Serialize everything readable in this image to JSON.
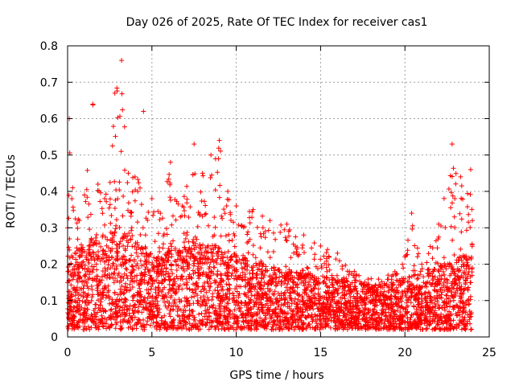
{
  "chart_data": {
    "type": "scatter",
    "title": "Day 026 of 2025, Rate Of TEC Index for receiver cas1",
    "xlabel": "GPS time / hours",
    "ylabel": "ROTI / TECUs",
    "xlim": [
      0,
      25
    ],
    "ylim": [
      0,
      0.8
    ],
    "xticks": [
      "0",
      "5",
      "10",
      "15",
      "20",
      "25"
    ],
    "yticks": [
      "0",
      "0.1",
      "0.2",
      "0.3",
      "0.4",
      "0.5",
      "0.6",
      "0.7",
      "0.8"
    ],
    "grid": true,
    "marker": "plus",
    "series_color": "#ff0000",
    "data_range_x": [
      0,
      24
    ],
    "envelope": [
      {
        "x": 0.0,
        "y_typical": 0.12,
        "y_peak": 0.3
      },
      {
        "x": 0.1,
        "y_typical": 0.14,
        "y_peak": 0.6
      },
      {
        "x": 0.3,
        "y_typical": 0.14,
        "y_peak": 0.41
      },
      {
        "x": 0.7,
        "y_typical": 0.15,
        "y_peak": 0.32
      },
      {
        "x": 1.0,
        "y_typical": 0.14,
        "y_peak": 0.39
      },
      {
        "x": 1.5,
        "y_typical": 0.16,
        "y_peak": 0.64
      },
      {
        "x": 1.8,
        "y_typical": 0.17,
        "y_peak": 0.42
      },
      {
        "x": 2.2,
        "y_typical": 0.16,
        "y_peak": 0.38
      },
      {
        "x": 2.8,
        "y_typical": 0.18,
        "y_peak": 0.67
      },
      {
        "x": 3.2,
        "y_typical": 0.18,
        "y_peak": 0.76
      },
      {
        "x": 3.6,
        "y_typical": 0.16,
        "y_peak": 0.45
      },
      {
        "x": 4.0,
        "y_typical": 0.15,
        "y_peak": 0.44
      },
      {
        "x": 4.5,
        "y_typical": 0.15,
        "y_peak": 0.62
      },
      {
        "x": 5.0,
        "y_typical": 0.13,
        "y_peak": 0.38
      },
      {
        "x": 5.5,
        "y_typical": 0.13,
        "y_peak": 0.34
      },
      {
        "x": 6.1,
        "y_typical": 0.14,
        "y_peak": 0.48
      },
      {
        "x": 6.8,
        "y_typical": 0.14,
        "y_peak": 0.36
      },
      {
        "x": 7.5,
        "y_typical": 0.16,
        "y_peak": 0.53
      },
      {
        "x": 8.0,
        "y_typical": 0.15,
        "y_peak": 0.45
      },
      {
        "x": 8.5,
        "y_typical": 0.15,
        "y_peak": 0.5
      },
      {
        "x": 9.0,
        "y_typical": 0.14,
        "y_peak": 0.54
      },
      {
        "x": 9.5,
        "y_typical": 0.13,
        "y_peak": 0.4
      },
      {
        "x": 10.0,
        "y_typical": 0.13,
        "y_peak": 0.36
      },
      {
        "x": 11.0,
        "y_typical": 0.12,
        "y_peak": 0.35
      },
      {
        "x": 12.0,
        "y_typical": 0.11,
        "y_peak": 0.32
      },
      {
        "x": 13.0,
        "y_typical": 0.1,
        "y_peak": 0.31
      },
      {
        "x": 14.0,
        "y_typical": 0.1,
        "y_peak": 0.28
      },
      {
        "x": 15.0,
        "y_typical": 0.09,
        "y_peak": 0.25
      },
      {
        "x": 16.0,
        "y_typical": 0.09,
        "y_peak": 0.23
      },
      {
        "x": 17.0,
        "y_typical": 0.08,
        "y_peak": 0.18
      },
      {
        "x": 18.0,
        "y_typical": 0.08,
        "y_peak": 0.16
      },
      {
        "x": 19.0,
        "y_typical": 0.08,
        "y_peak": 0.17
      },
      {
        "x": 20.0,
        "y_typical": 0.09,
        "y_peak": 0.22
      },
      {
        "x": 20.4,
        "y_typical": 0.1,
        "y_peak": 0.34
      },
      {
        "x": 21.0,
        "y_typical": 0.09,
        "y_peak": 0.2
      },
      {
        "x": 22.0,
        "y_typical": 0.11,
        "y_peak": 0.31
      },
      {
        "x": 22.8,
        "y_typical": 0.12,
        "y_peak": 0.53
      },
      {
        "x": 23.3,
        "y_typical": 0.13,
        "y_peak": 0.44
      },
      {
        "x": 23.9,
        "y_typical": 0.13,
        "y_peak": 0.46
      },
      {
        "x": 24.0,
        "y_typical": 0.12,
        "y_peak": 0.32
      }
    ]
  }
}
